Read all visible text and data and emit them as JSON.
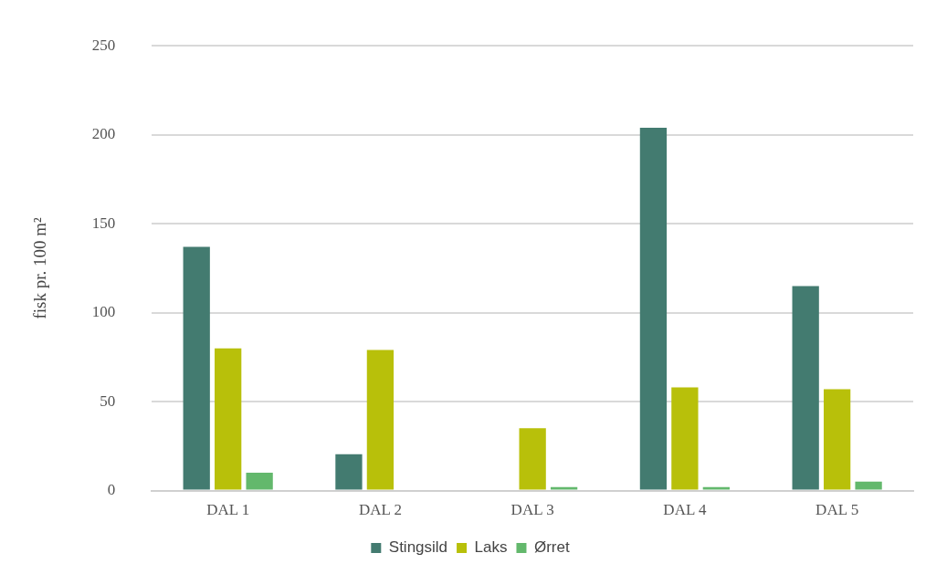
{
  "chart_data": {
    "type": "bar",
    "ylabel": "fisk pr. 100 m²",
    "categories": [
      "DAL 1",
      "DAL 2",
      "DAL 3",
      "DAL 4",
      "DAL 5"
    ],
    "series": [
      {
        "name": "Stingsild",
        "color": "#437b70",
        "values": [
          137,
          20.5,
          0,
          204,
          115
        ]
      },
      {
        "name": "Laks",
        "color": "#b8c00a",
        "values": [
          80,
          79,
          35,
          58,
          57
        ]
      },
      {
        "name": "Ørret",
        "color": "#63b86c",
        "values": [
          10,
          0,
          2,
          2,
          5
        ]
      }
    ],
    "ylim": [
      0,
      250
    ],
    "yticks": [
      0,
      50,
      100,
      150,
      200,
      250
    ],
    "grid": "y",
    "legend": "bottom"
  }
}
